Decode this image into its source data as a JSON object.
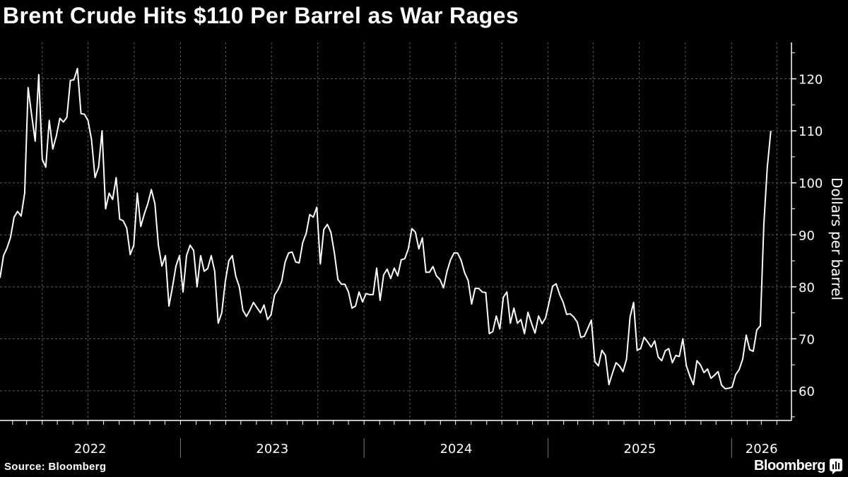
{
  "title": "Brent Crude Hits $110 Per Barrel as War Rages",
  "source": "Source: Bloomberg",
  "brand": "Bloomberg",
  "colors": {
    "background": "#000000",
    "line": "#ffffff",
    "grid": "#5a5a5a",
    "text": "#ffffff"
  },
  "chart_data": {
    "type": "line",
    "title": "Brent Crude Hits $110 Per Barrel as War Rages",
    "ylabel": "Dollars per barrel",
    "xlabel": "",
    "y_axis_side": "right",
    "ylim": [
      54.3,
      127
    ],
    "yticks": [
      60,
      70,
      80,
      90,
      100,
      110,
      120
    ],
    "xlim": [
      "2022-01-07",
      "2026-04-30"
    ],
    "x_year_labels": [
      "2022",
      "2023",
      "2024",
      "2025",
      "2026"
    ],
    "grid": true,
    "grid_style": "dashed, quarterly vertical and every 10 horizontal",
    "legend": "none",
    "series": [
      {
        "x": [
          "2022-01-07",
          "2022-01-14",
          "2022-01-21",
          "2022-01-28",
          "2022-02-04",
          "2022-02-11",
          "2022-02-18",
          "2022-02-25",
          "2022-03-04",
          "2022-03-11",
          "2022-03-18",
          "2022-03-25",
          "2022-04-01",
          "2022-04-08",
          "2022-04-15",
          "2022-04-22",
          "2022-04-29",
          "2022-05-06",
          "2022-05-13",
          "2022-05-20",
          "2022-05-27",
          "2022-06-03",
          "2022-06-10",
          "2022-06-17",
          "2022-06-24",
          "2022-07-01",
          "2022-07-08",
          "2022-07-15",
          "2022-07-22",
          "2022-07-29",
          "2022-08-05",
          "2022-08-12",
          "2022-08-19",
          "2022-08-26",
          "2022-09-02",
          "2022-09-09",
          "2022-09-16",
          "2022-09-23",
          "2022-09-30",
          "2022-10-07",
          "2022-10-14",
          "2022-10-21",
          "2022-10-28",
          "2022-11-04",
          "2022-11-11",
          "2022-11-18",
          "2022-11-25",
          "2022-12-02",
          "2022-12-09",
          "2022-12-16",
          "2022-12-23",
          "2022-12-30",
          "2023-01-06",
          "2023-01-13",
          "2023-01-20",
          "2023-01-27",
          "2023-02-03",
          "2023-02-10",
          "2023-02-17",
          "2023-02-24",
          "2023-03-03",
          "2023-03-10",
          "2023-03-17",
          "2023-03-24",
          "2023-03-31",
          "2023-04-07",
          "2023-04-14",
          "2023-04-21",
          "2023-04-28",
          "2023-05-05",
          "2023-05-12",
          "2023-05-19",
          "2023-05-26",
          "2023-06-02",
          "2023-06-09",
          "2023-06-16",
          "2023-06-23",
          "2023-06-30",
          "2023-07-07",
          "2023-07-14",
          "2023-07-21",
          "2023-07-28",
          "2023-08-04",
          "2023-08-11",
          "2023-08-18",
          "2023-08-25",
          "2023-09-01",
          "2023-09-08",
          "2023-09-15",
          "2023-09-22",
          "2023-09-29",
          "2023-10-06",
          "2023-10-13",
          "2023-10-20",
          "2023-10-27",
          "2023-11-03",
          "2023-11-10",
          "2023-11-17",
          "2023-11-24",
          "2023-12-01",
          "2023-12-08",
          "2023-12-15",
          "2023-12-22",
          "2023-12-29",
          "2024-01-05",
          "2024-01-12",
          "2024-01-19",
          "2024-01-26",
          "2024-02-02",
          "2024-02-09",
          "2024-02-16",
          "2024-02-23",
          "2024-03-01",
          "2024-03-08",
          "2024-03-15",
          "2024-03-22",
          "2024-03-29",
          "2024-04-05",
          "2024-04-12",
          "2024-04-19",
          "2024-04-26",
          "2024-05-03",
          "2024-05-10",
          "2024-05-17",
          "2024-05-24",
          "2024-05-31",
          "2024-06-07",
          "2024-06-14",
          "2024-06-21",
          "2024-06-28",
          "2024-07-05",
          "2024-07-12",
          "2024-07-19",
          "2024-07-26",
          "2024-08-02",
          "2024-08-09",
          "2024-08-16",
          "2024-08-23",
          "2024-08-30",
          "2024-09-06",
          "2024-09-13",
          "2024-09-20",
          "2024-09-27",
          "2024-10-04",
          "2024-10-11",
          "2024-10-18",
          "2024-10-25",
          "2024-11-01",
          "2024-11-08",
          "2024-11-15",
          "2024-11-22",
          "2024-11-29",
          "2024-12-06",
          "2024-12-13",
          "2024-12-20",
          "2024-12-27",
          "2025-01-03",
          "2025-01-10",
          "2025-01-17",
          "2025-01-24",
          "2025-01-31",
          "2025-02-07",
          "2025-02-14",
          "2025-02-21",
          "2025-02-28",
          "2025-03-07",
          "2025-03-14",
          "2025-03-21",
          "2025-03-28",
          "2025-04-04",
          "2025-04-11",
          "2025-04-18",
          "2025-04-25",
          "2025-05-02",
          "2025-05-09",
          "2025-05-16",
          "2025-05-23",
          "2025-05-30",
          "2025-06-06",
          "2025-06-13",
          "2025-06-20",
          "2025-06-27",
          "2025-07-04",
          "2025-07-11",
          "2025-07-18",
          "2025-07-25",
          "2025-08-01",
          "2025-08-08",
          "2025-08-15",
          "2025-08-22",
          "2025-08-29",
          "2025-09-05",
          "2025-09-12",
          "2025-09-19",
          "2025-09-26",
          "2025-10-03",
          "2025-10-10",
          "2025-10-17",
          "2025-10-24",
          "2025-10-31",
          "2025-11-07",
          "2025-11-14",
          "2025-11-21",
          "2025-11-28",
          "2025-12-05",
          "2025-12-12",
          "2025-12-19",
          "2025-12-26",
          "2026-01-02",
          "2026-01-09",
          "2026-01-16",
          "2026-01-23",
          "2026-01-30",
          "2026-02-06",
          "2026-02-13",
          "2026-02-20",
          "2026-02-27",
          "2026-03-06",
          "2026-03-13",
          "2026-03-20"
        ],
        "y": [
          81.7,
          86,
          87.5,
          89.5,
          93.4,
          94.5,
          93.6,
          98,
          118.3,
          113,
          108,
          120.8,
          104.5,
          103,
          112,
          106.5,
          109,
          112.4,
          111.7,
          112.6,
          119.7,
          119.8,
          122,
          113.3,
          113.2,
          112,
          108.3,
          101,
          103,
          110,
          95,
          98,
          96.8,
          101,
          93,
          92.7,
          91.3,
          86.2,
          88,
          98,
          91.6,
          94,
          96,
          98.7,
          96,
          88,
          84,
          86,
          76.3,
          80,
          84,
          86,
          79,
          86,
          88,
          87,
          80,
          86,
          83,
          83.5,
          86,
          83,
          73,
          75,
          81,
          85,
          86,
          82,
          80,
          75.5,
          74.3,
          75.5,
          77,
          76,
          75,
          76.5,
          73.7,
          74.6,
          78.4,
          79.5,
          81,
          84.8,
          86.5,
          86.7,
          84.8,
          84.6,
          88.5,
          90.3,
          93.9,
          93.4,
          95.3,
          84.4,
          91,
          92,
          90.5,
          86.5,
          81.4,
          80.5,
          80.5,
          79,
          75.9,
          76.3,
          79,
          77.1,
          78.7,
          78.5,
          78.5,
          83.6,
          77.4,
          82.3,
          83.4,
          81.6,
          83.6,
          82.1,
          85.2,
          85.4,
          87.3,
          91.2,
          90.5,
          87.3,
          89.4,
          82.8,
          82.8,
          83.9,
          82.1,
          81.4,
          79.8,
          83,
          85.2,
          86.5,
          86.5,
          85.1,
          82.7,
          81.2,
          76.7,
          79.7,
          79.7,
          79,
          78.9,
          71,
          71.4,
          74.4,
          71.9,
          78,
          79,
          73,
          75.9,
          73,
          73.7,
          71,
          75.1,
          73,
          71.1,
          74.4,
          72.9,
          74,
          77,
          80.1,
          80.6,
          78.5,
          77,
          74.7,
          74.8,
          74.2,
          73.2,
          70.3,
          70.5,
          72,
          73.6,
          65.6,
          64.8,
          67.8,
          66.8,
          61.2,
          63.4,
          65.4,
          64.8,
          63.7,
          66.1,
          74.2,
          77,
          67.8,
          68.1,
          70.3,
          69.4,
          68.4,
          69.6,
          66.5,
          65.8,
          67.7,
          68.1,
          65.4,
          66.8,
          66.6,
          70,
          64.8,
          62.8,
          61.2,
          65.8,
          65,
          63.5,
          64.2,
          62.4,
          63,
          63.7,
          61.1,
          60.4,
          60.5,
          60.7,
          63.1,
          64.1,
          66.1,
          70.7,
          67.9,
          67.6,
          71.7,
          72.5,
          92,
          103,
          110
        ]
      }
    ]
  }
}
